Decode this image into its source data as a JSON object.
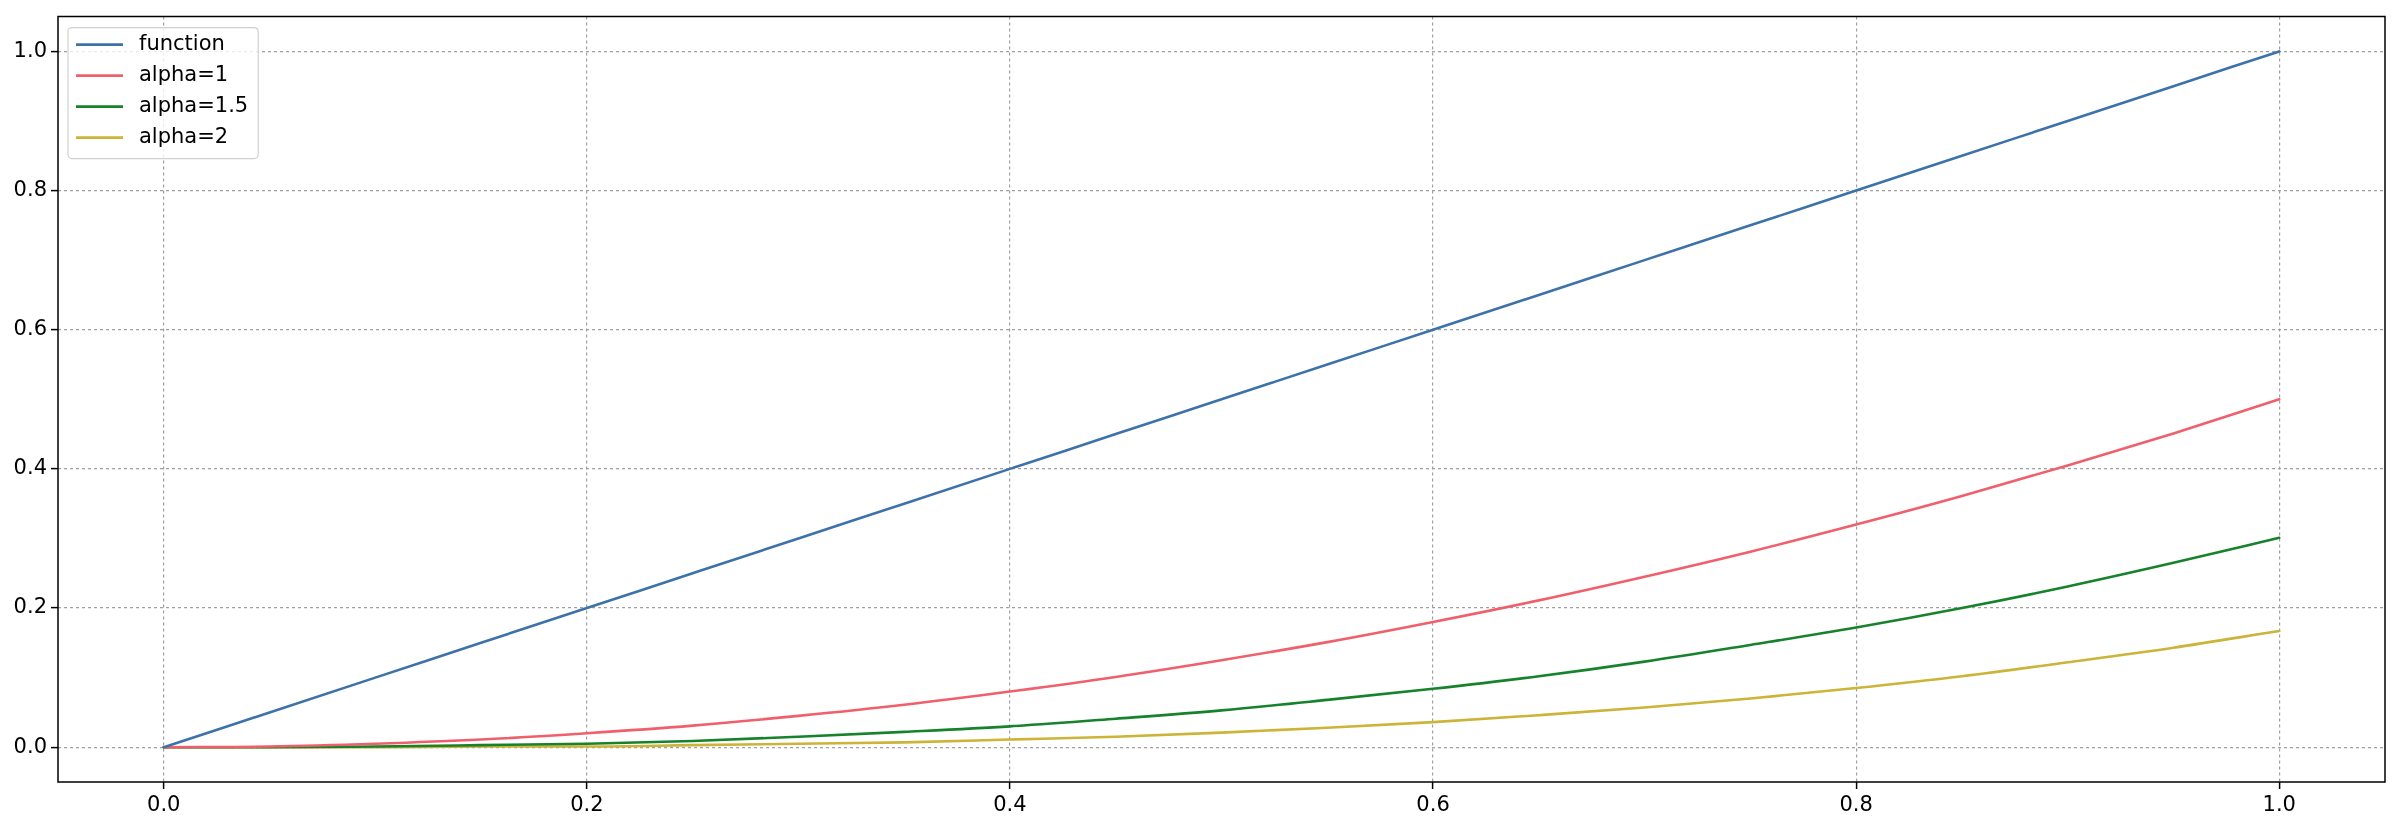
{
  "chart_data": {
    "type": "line",
    "x": [
      0,
      0.05,
      0.1,
      0.15,
      0.2,
      0.25,
      0.3,
      0.35,
      0.4,
      0.45,
      0.5,
      0.55,
      0.6,
      0.65,
      0.7,
      0.75,
      0.8,
      0.85,
      0.9,
      0.95,
      1.0
    ],
    "series": [
      {
        "name": "function",
        "color": "#3d72a8",
        "values": [
          0,
          0.05,
          0.1,
          0.15,
          0.2,
          0.25,
          0.3,
          0.35,
          0.4,
          0.45,
          0.5,
          0.55,
          0.6,
          0.65,
          0.7,
          0.75,
          0.8,
          0.85,
          0.9,
          0.95,
          1.0
        ]
      },
      {
        "name": "alpha=1",
        "color": "#ef5f6c",
        "values": [
          0,
          0.001,
          0.005,
          0.011,
          0.02,
          0.031,
          0.045,
          0.061,
          0.08,
          0.101,
          0.125,
          0.151,
          0.18,
          0.211,
          0.245,
          0.281,
          0.32,
          0.361,
          0.405,
          0.451,
          0.5
        ]
      },
      {
        "name": "alpha=1.5",
        "color": "#16822c",
        "values": [
          0,
          0,
          0.001,
          0.003,
          0.005,
          0.009,
          0.015,
          0.022,
          0.03,
          0.041,
          0.053,
          0.068,
          0.084,
          0.102,
          0.123,
          0.147,
          0.172,
          0.2,
          0.231,
          0.265,
          0.301
        ]
      },
      {
        "name": "alpha=2",
        "color": "#cbb437",
        "values": [
          0,
          0,
          0,
          0.001,
          0.001,
          0.003,
          0.005,
          0.007,
          0.011,
          0.015,
          0.021,
          0.028,
          0.036,
          0.046,
          0.057,
          0.07,
          0.085,
          0.102,
          0.122,
          0.143,
          0.167
        ]
      }
    ],
    "xlim": [
      -0.05,
      1.05
    ],
    "ylim": [
      -0.05,
      1.05
    ],
    "xticks": [
      {
        "value": 0,
        "label": "0.0"
      },
      {
        "value": 0.2,
        "label": "0.2"
      },
      {
        "value": 0.4,
        "label": "0.4"
      },
      {
        "value": 0.6,
        "label": "0.6"
      },
      {
        "value": 0.8,
        "label": "0.8"
      },
      {
        "value": 1,
        "label": "1.0"
      }
    ],
    "yticks": [
      {
        "value": 0,
        "label": "0.0"
      },
      {
        "value": 0.2,
        "label": "0.2"
      },
      {
        "value": 0.4,
        "label": "0.4"
      },
      {
        "value": 0.6,
        "label": "0.6"
      },
      {
        "value": 0.8,
        "label": "0.8"
      },
      {
        "value": 1,
        "label": "1.0"
      }
    ],
    "grid": true,
    "legend": "top left"
  }
}
